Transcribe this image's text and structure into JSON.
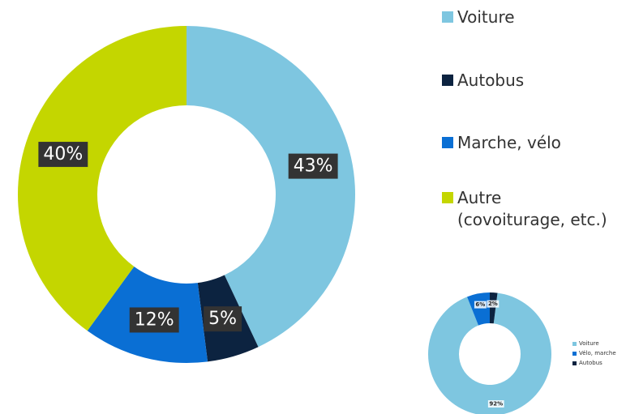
{
  "chart_data": [
    {
      "type": "donut",
      "categories": [
        "Voiture",
        "Autobus",
        "Marche, vélo",
        "Autre\n(covoiturage, etc.)"
      ],
      "values": [
        43,
        5,
        12,
        40
      ],
      "value_labels": [
        "43%",
        "5%",
        "12%",
        "40%"
      ],
      "colors": [
        "#7ec6e0",
        "#0c2340",
        "#0a6fd4",
        "#c4d600"
      ],
      "legend": "right"
    },
    {
      "type": "donut",
      "categories": [
        "Voiture",
        "Vélo, marche",
        "Autobus"
      ],
      "values": [
        92,
        6,
        2
      ],
      "value_labels": [
        "92%",
        "6%",
        "2%"
      ],
      "colors": [
        "#7ec6e0",
        "#0a6fd4",
        "#0c2340"
      ],
      "legend": "right"
    }
  ]
}
